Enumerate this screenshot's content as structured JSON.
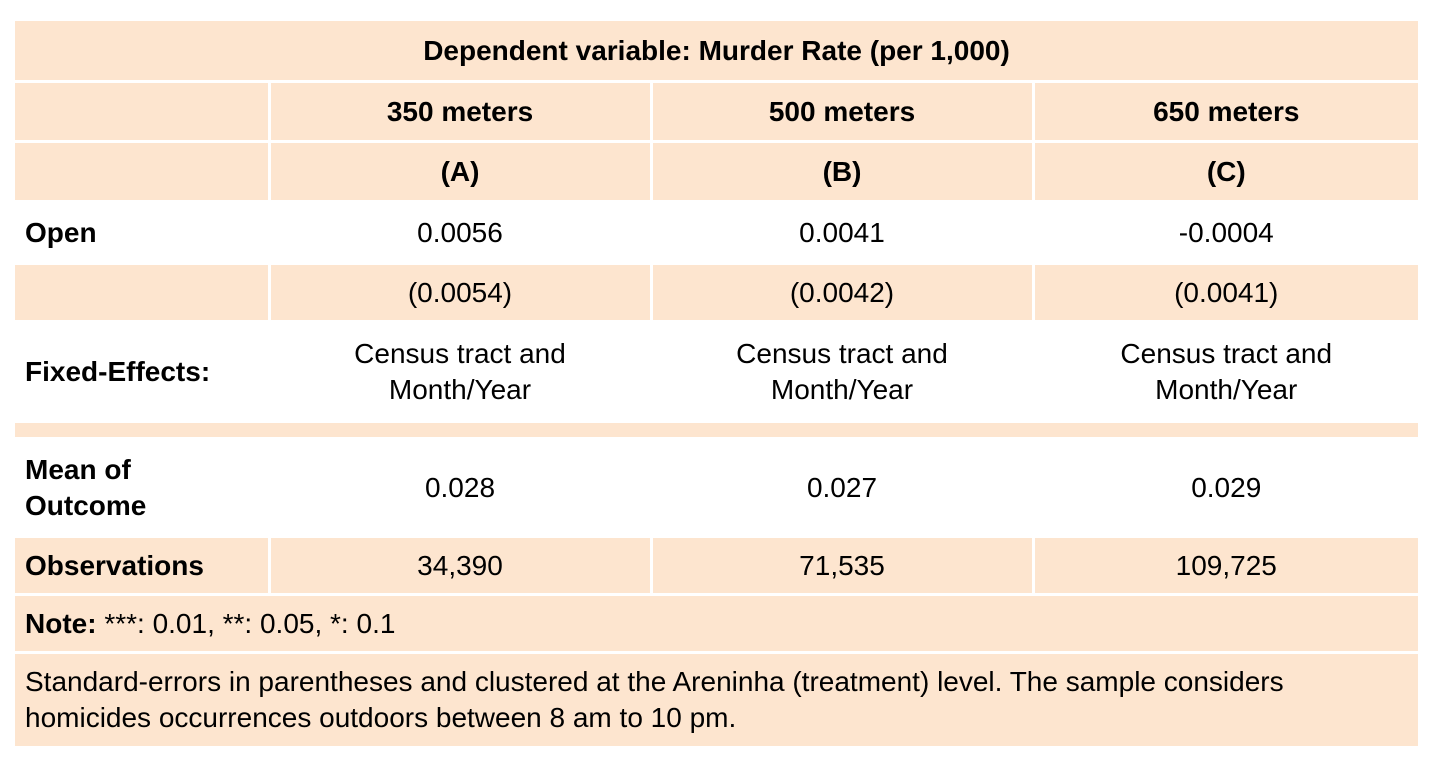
{
  "table": {
    "caption": "Dependent variable: Murder Rate (per 1,000)",
    "columns": [
      "350 meters",
      "500 meters",
      "650 meters"
    ],
    "column_ids": [
      "(A)",
      "(B)",
      "(C)"
    ],
    "open": {
      "label": "Open",
      "estimates": [
        "0.0056",
        "0.0041",
        "-0.0004"
      ],
      "std_errors": [
        "(0.0054)",
        "(0.0042)",
        "(0.0041)"
      ]
    },
    "fixed_effects": {
      "label": "Fixed-Effects:",
      "values": [
        "Census tract and Month/Year",
        "Census tract and Month/Year",
        "Census tract and Month/Year"
      ]
    },
    "mean_outcome": {
      "label": "Mean of Outcome",
      "values": [
        "0.028",
        "0.027",
        "0.029"
      ]
    },
    "observations": {
      "label": "Observations",
      "values": [
        "34,390",
        "71,535",
        "109,725"
      ]
    },
    "note": {
      "label": "Note:",
      "text": "***: 0.01, **: 0.05, *: 0.1"
    },
    "footnote": "Standard-errors in parentheses and clustered at the Areninha (treatment) level. The sample considers homicides occurrences outdoors between 8 am to 10 pm."
  }
}
